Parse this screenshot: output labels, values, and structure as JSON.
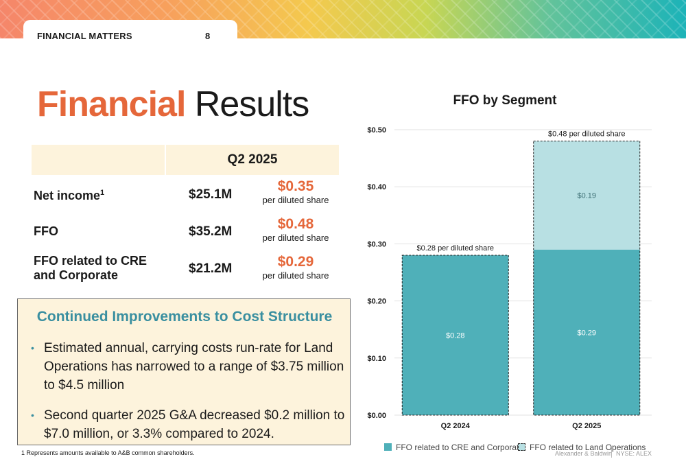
{
  "header": {
    "section": "FINANCIAL MATTERS",
    "page": "8"
  },
  "title": {
    "accent": "Financial",
    "rest": " Results"
  },
  "table": {
    "period": "Q2 2025",
    "rows": [
      {
        "label": "Net income",
        "sup": "1",
        "amount": "$25.1M",
        "per_share": "$0.35",
        "per_share_note": "per diluted share"
      },
      {
        "label": "FFO",
        "sup": "",
        "amount": "$35.2M",
        "per_share": "$0.48",
        "per_share_note": "per diluted share"
      },
      {
        "label": "FFO related to CRE and Corporate",
        "sup": "",
        "amount": "$21.2M",
        "per_share": "$0.29",
        "per_share_note": "per diluted share"
      }
    ]
  },
  "callout": {
    "title": "Continued Improvements to Cost Structure",
    "bullets": [
      "Estimated annual, carrying costs run-rate for Land Operations has narrowed to a range of $3.75 million to $4.5 million",
      "Second quarter 2025 G&A decreased $0.2 million to $7.0 million, or 3.3% compared to 2024."
    ]
  },
  "footnote": "1 Represents amounts available to A&B common shareholders.",
  "footer": {
    "company": "Alexander & Baldwin",
    "ticker": "NYSE: ALEX"
  },
  "chart_data": {
    "type": "bar",
    "stacked": true,
    "title": "FFO by Segment",
    "categories": [
      "Q2 2024",
      "Q2 2025"
    ],
    "series": [
      {
        "name": "FFO related to CRE and Corporate",
        "values": [
          0.28,
          0.29
        ],
        "labels": [
          "$0.28",
          "$0.29"
        ],
        "color": "#4fb0b9"
      },
      {
        "name": "FFO related to Land Operations",
        "values": [
          0,
          0.19
        ],
        "labels": [
          "",
          "$0.19"
        ],
        "color": "#b8e0e3"
      }
    ],
    "totals": [
      {
        "value": 0.28,
        "label": "$0.28 per diluted share"
      },
      {
        "value": 0.48,
        "label": "$0.48 per diluted share"
      }
    ],
    "ylim": [
      0,
      0.5
    ],
    "yticks": [
      "$0.00",
      "$0.10",
      "$0.20",
      "$0.30",
      "$0.40",
      "$0.50"
    ],
    "grid": true,
    "legend_position": "bottom"
  },
  "colors": {
    "accent": "#e5673a",
    "teal": "#3a8fa0",
    "cream": "#fdf3dc"
  }
}
